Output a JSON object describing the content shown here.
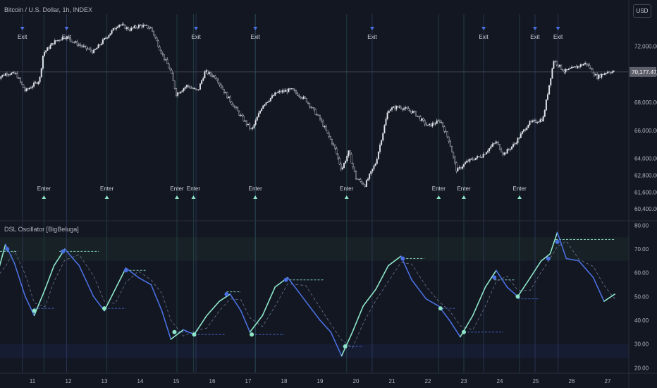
{
  "header": {
    "symbol_title": "Bitcoin / U.S. Dollar, 1h, INDEX",
    "currency": "USD"
  },
  "indicator": {
    "title": "DSL Oscillator [BigBeluga]"
  },
  "colors": {
    "background": "#131722",
    "bull": "#8ee5c8",
    "bear": "#4a6fe0",
    "candle": "#d1d4dc",
    "price_line": "#e0e3eb"
  },
  "chart_data": [
    {
      "type": "candlestick",
      "title": "Bitcoin / U.S. Dollar, 1h, INDEX",
      "x_tick_labels": [
        "11",
        "12",
        "13",
        "14",
        "15",
        "16",
        "17",
        "18",
        "19",
        "20",
        "21",
        "22",
        "23",
        "24",
        "25",
        "26",
        "27"
      ],
      "y_ticks": [
        72000,
        70000,
        68000,
        66000,
        64000,
        62800,
        61600,
        60400
      ],
      "y_tick_labels": [
        "72,000.00",
        "70,000.00",
        "68,000.00",
        "66,000.00",
        "64,000.00",
        "62,800.00",
        "61,600.00",
        "60,400.00"
      ],
      "ylim": [
        59600,
        74300
      ],
      "current_price": 70177.47,
      "current_price_label": "70,177.47",
      "close_series_approx": [
        {
          "x": 10.0,
          "y": 69700
        },
        {
          "x": 10.3,
          "y": 70100
        },
        {
          "x": 10.55,
          "y": 70000
        },
        {
          "x": 10.8,
          "y": 68800
        },
        {
          "x": 11.2,
          "y": 69600
        },
        {
          "x": 11.3,
          "y": 71500
        },
        {
          "x": 11.6,
          "y": 72300
        },
        {
          "x": 11.9,
          "y": 72700
        },
        {
          "x": 12.3,
          "y": 72100
        },
        {
          "x": 12.7,
          "y": 71600
        },
        {
          "x": 13.0,
          "y": 72500
        },
        {
          "x": 13.4,
          "y": 73600
        },
        {
          "x": 13.7,
          "y": 73200
        },
        {
          "x": 14.0,
          "y": 73500
        },
        {
          "x": 14.3,
          "y": 73300
        },
        {
          "x": 14.6,
          "y": 71500
        },
        {
          "x": 14.85,
          "y": 70200
        },
        {
          "x": 15.0,
          "y": 68600
        },
        {
          "x": 15.3,
          "y": 69200
        },
        {
          "x": 15.6,
          "y": 68800
        },
        {
          "x": 15.8,
          "y": 70200
        },
        {
          "x": 16.1,
          "y": 69800
        },
        {
          "x": 16.4,
          "y": 68500
        },
        {
          "x": 16.8,
          "y": 67000
        },
        {
          "x": 17.1,
          "y": 66000
        },
        {
          "x": 17.4,
          "y": 67800
        },
        {
          "x": 17.8,
          "y": 68700
        },
        {
          "x": 18.2,
          "y": 68900
        },
        {
          "x": 18.6,
          "y": 68200
        },
        {
          "x": 19.0,
          "y": 66800
        },
        {
          "x": 19.4,
          "y": 64800
        },
        {
          "x": 19.6,
          "y": 63200
        },
        {
          "x": 19.8,
          "y": 64500
        },
        {
          "x": 20.0,
          "y": 62600
        },
        {
          "x": 20.25,
          "y": 62100
        },
        {
          "x": 20.55,
          "y": 63700
        },
        {
          "x": 20.9,
          "y": 67500
        },
        {
          "x": 21.2,
          "y": 67700
        },
        {
          "x": 21.6,
          "y": 67300
        },
        {
          "x": 22.0,
          "y": 66300
        },
        {
          "x": 22.35,
          "y": 66700
        },
        {
          "x": 22.6,
          "y": 65200
        },
        {
          "x": 22.8,
          "y": 63100
        },
        {
          "x": 23.1,
          "y": 63800
        },
        {
          "x": 23.5,
          "y": 64200
        },
        {
          "x": 23.9,
          "y": 65200
        },
        {
          "x": 24.1,
          "y": 64300
        },
        {
          "x": 24.4,
          "y": 65000
        },
        {
          "x": 24.8,
          "y": 66500
        },
        {
          "x": 25.2,
          "y": 66800
        },
        {
          "x": 25.5,
          "y": 71000
        },
        {
          "x": 25.8,
          "y": 70200
        },
        {
          "x": 26.1,
          "y": 70500
        },
        {
          "x": 26.4,
          "y": 70800
        },
        {
          "x": 26.7,
          "y": 69800
        },
        {
          "x": 27.0,
          "y": 70200
        },
        {
          "x": 27.2,
          "y": 70177.47
        }
      ],
      "signals": [
        {
          "x": 10.72,
          "type": "Exit",
          "label": "Exit"
        },
        {
          "x": 11.95,
          "type": "Exit",
          "label": "Exit"
        },
        {
          "x": 15.55,
          "type": "Exit",
          "label": "Exit"
        },
        {
          "x": 17.2,
          "type": "Exit",
          "label": "Exit"
        },
        {
          "x": 20.45,
          "type": "Exit",
          "label": "Exit"
        },
        {
          "x": 23.55,
          "type": "Exit",
          "label": "Exit"
        },
        {
          "x": 24.98,
          "type": "Exit",
          "label": "Exit"
        },
        {
          "x": 25.62,
          "type": "Exit",
          "label": "Exit"
        },
        {
          "x": 11.32,
          "type": "Enter",
          "label": "Enter"
        },
        {
          "x": 13.07,
          "type": "Enter",
          "label": "Enter"
        },
        {
          "x": 15.02,
          "type": "Enter",
          "label": "Enter"
        },
        {
          "x": 15.48,
          "type": "Enter",
          "label": "Enter"
        },
        {
          "x": 17.2,
          "type": "Enter",
          "label": "Enter"
        },
        {
          "x": 19.74,
          "type": "Enter",
          "label": "Enter"
        },
        {
          "x": 22.3,
          "type": "Enter",
          "label": "Enter"
        },
        {
          "x": 23.0,
          "type": "Enter",
          "label": "Enter"
        },
        {
          "x": 24.55,
          "type": "Enter",
          "label": "Enter"
        }
      ]
    },
    {
      "type": "line",
      "title": "DSL Oscillator [BigBeluga]",
      "y_ticks": [
        80,
        70,
        60,
        50,
        40,
        30,
        20
      ],
      "y_tick_labels": [
        "80.00",
        "70.00",
        "60.00",
        "50.00",
        "40.00",
        "30.00",
        "20.00"
      ],
      "ylim": [
        18,
        81
      ],
      "upper_zone": 75,
      "lower_zone": 25,
      "series": [
        {
          "key": "oscillator",
          "values": [
            {
              "x": 10.0,
              "y": 58
            },
            {
              "x": 10.25,
              "y": 72
            },
            {
              "x": 10.5,
              "y": 64
            },
            {
              "x": 10.8,
              "y": 50
            },
            {
              "x": 11.05,
              "y": 42
            },
            {
              "x": 11.35,
              "y": 53
            },
            {
              "x": 11.6,
              "y": 63
            },
            {
              "x": 11.9,
              "y": 70
            },
            {
              "x": 12.3,
              "y": 63
            },
            {
              "x": 12.7,
              "y": 50
            },
            {
              "x": 13.0,
              "y": 44
            },
            {
              "x": 13.3,
              "y": 53
            },
            {
              "x": 13.6,
              "y": 62
            },
            {
              "x": 13.95,
              "y": 58
            },
            {
              "x": 14.3,
              "y": 55
            },
            {
              "x": 14.6,
              "y": 44
            },
            {
              "x": 14.85,
              "y": 32
            },
            {
              "x": 15.2,
              "y": 36
            },
            {
              "x": 15.5,
              "y": 34
            },
            {
              "x": 15.85,
              "y": 42
            },
            {
              "x": 16.2,
              "y": 48
            },
            {
              "x": 16.5,
              "y": 51
            },
            {
              "x": 16.8,
              "y": 44
            },
            {
              "x": 17.05,
              "y": 35
            },
            {
              "x": 17.4,
              "y": 42
            },
            {
              "x": 17.75,
              "y": 54
            },
            {
              "x": 18.1,
              "y": 58
            },
            {
              "x": 18.6,
              "y": 48
            },
            {
              "x": 19.0,
              "y": 40
            },
            {
              "x": 19.3,
              "y": 35
            },
            {
              "x": 19.6,
              "y": 25
            },
            {
              "x": 19.9,
              "y": 35
            },
            {
              "x": 20.2,
              "y": 46
            },
            {
              "x": 20.55,
              "y": 53
            },
            {
              "x": 20.9,
              "y": 63
            },
            {
              "x": 21.25,
              "y": 67
            },
            {
              "x": 21.55,
              "y": 57
            },
            {
              "x": 21.95,
              "y": 49
            },
            {
              "x": 22.3,
              "y": 46
            },
            {
              "x": 22.6,
              "y": 40
            },
            {
              "x": 22.9,
              "y": 33
            },
            {
              "x": 23.25,
              "y": 42
            },
            {
              "x": 23.6,
              "y": 54
            },
            {
              "x": 23.9,
              "y": 61
            },
            {
              "x": 24.2,
              "y": 54
            },
            {
              "x": 24.5,
              "y": 50
            },
            {
              "x": 24.85,
              "y": 58
            },
            {
              "x": 25.15,
              "y": 65
            },
            {
              "x": 25.4,
              "y": 68
            },
            {
              "x": 25.6,
              "y": 77
            },
            {
              "x": 25.85,
              "y": 66
            },
            {
              "x": 26.2,
              "y": 65
            },
            {
              "x": 26.6,
              "y": 58
            },
            {
              "x": 26.9,
              "y": 48
            },
            {
              "x": 27.2,
              "y": 51
            }
          ]
        },
        {
          "key": "upper_level",
          "segments": [
            {
              "x0": 10.1,
              "x1": 10.6,
              "y": 69
            },
            {
              "x0": 11.75,
              "x1": 12.85,
              "y": 69
            },
            {
              "x0": 13.6,
              "x1": 14.15,
              "y": 61
            },
            {
              "x0": 16.4,
              "x1": 16.8,
              "y": 52
            },
            {
              "x0": 18.05,
              "x1": 19.1,
              "y": 57
            },
            {
              "x0": 21.3,
              "x1": 21.9,
              "y": 66
            },
            {
              "x0": 23.85,
              "x1": 24.4,
              "y": 57
            },
            {
              "x0": 25.55,
              "x1": 27.2,
              "y": 74
            }
          ]
        },
        {
          "key": "lower_level",
          "segments": [
            {
              "x0": 11.05,
              "x1": 11.6,
              "y": 45
            },
            {
              "x0": 13.0,
              "x1": 13.6,
              "y": 45
            },
            {
              "x0": 14.95,
              "x1": 15.35,
              "y": 35
            },
            {
              "x0": 15.5,
              "x1": 16.35,
              "y": 34
            },
            {
              "x0": 17.1,
              "x1": 18.0,
              "y": 34
            },
            {
              "x0": 19.7,
              "x1": 20.2,
              "y": 29
            },
            {
              "x0": 22.4,
              "x1": 22.75,
              "y": 45
            },
            {
              "x0": 23.0,
              "x1": 24.1,
              "y": 35
            },
            {
              "x0": 24.5,
              "x1": 25.1,
              "y": 49
            }
          ]
        }
      ],
      "pivots": [
        {
          "x": 10.3,
          "y": 70,
          "type": "high"
        },
        {
          "x": 11.85,
          "y": 69,
          "type": "high"
        },
        {
          "x": 13.6,
          "y": 61,
          "type": "high"
        },
        {
          "x": 16.4,
          "y": 51,
          "type": "high"
        },
        {
          "x": 18.05,
          "y": 57,
          "type": "high"
        },
        {
          "x": 21.3,
          "y": 66,
          "type": "high"
        },
        {
          "x": 23.85,
          "y": 58,
          "type": "high"
        },
        {
          "x": 25.35,
          "y": 66,
          "type": "high"
        },
        {
          "x": 25.6,
          "y": 73,
          "type": "high"
        },
        {
          "x": 11.05,
          "y": 44,
          "type": "low"
        },
        {
          "x": 13.0,
          "y": 45,
          "type": "low"
        },
        {
          "x": 14.95,
          "y": 35,
          "type": "low"
        },
        {
          "x": 15.5,
          "y": 34,
          "type": "low"
        },
        {
          "x": 17.1,
          "y": 34,
          "type": "low"
        },
        {
          "x": 19.7,
          "y": 29,
          "type": "low"
        },
        {
          "x": 22.35,
          "y": 45,
          "type": "low"
        },
        {
          "x": 23.0,
          "y": 35,
          "type": "low"
        },
        {
          "x": 24.5,
          "y": 50,
          "type": "low"
        }
      ]
    }
  ]
}
